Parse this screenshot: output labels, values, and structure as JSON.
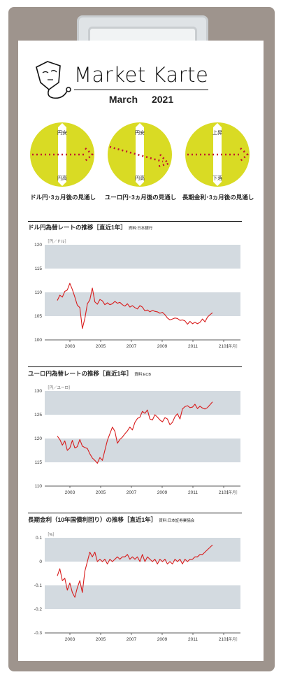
{
  "header": {
    "brand": "Market Karte",
    "month": "March 2021"
  },
  "colors": {
    "disc": "#d9db24",
    "arrow": "#c1192e",
    "band": "#d3dae0",
    "line": "#d81c1c"
  },
  "forecasts": [
    {
      "up_label": "円安",
      "down_label": "円高",
      "direction": "flat",
      "caption": "ドル円･3ヵ月後の見通し"
    },
    {
      "up_label": "円安",
      "down_label": "円高",
      "direction": "down",
      "caption": "ユーロ円･3ヵ月後の見通し"
    },
    {
      "up_label": "上昇",
      "down_label": "下落",
      "direction": "flat",
      "caption": "長期金利･3ヵ月後の見通し"
    }
  ],
  "charts": [
    {
      "title": "ドル円為替レートの推移［直近1年］",
      "source": "資料:日本銀行",
      "unit": "［円／ドル］"
    },
    {
      "title": "ユーロ円為替レートの推移［直近1年］",
      "source": "資料:ECB",
      "unit": "［円／ユーロ］"
    },
    {
      "title": "長期金利（10年国債利回り）の推移［直近1年］",
      "source": "資料:日本証券業協会",
      "unit": "［%］"
    }
  ],
  "chart_data": [
    {
      "type": "line",
      "ylim": [
        100,
        120
      ],
      "yticks": [
        100,
        105,
        110,
        115,
        120
      ],
      "ytick_labels": [
        "100",
        "105",
        "110",
        "115",
        "120"
      ],
      "xticks": [
        "2003",
        "2005",
        "2007",
        "2009",
        "2011",
        "2101"
      ],
      "x_unit_label": "［年月］",
      "series": [
        {
          "values": [
            108.3,
            109.4,
            109.0,
            110.2,
            110.5,
            111.9,
            110.6,
            109.0,
            107.3,
            106.8,
            102.4,
            104.5,
            107.6,
            108.4,
            110.9,
            108.0,
            107.5,
            108.5,
            108.2,
            107.4,
            107.8,
            107.4,
            107.6,
            108.1,
            107.7,
            107.9,
            107.4,
            107.1,
            107.6,
            106.9,
            107.2,
            106.8,
            106.5,
            107.2,
            106.9,
            106.1,
            106.3,
            105.9,
            106.2,
            106.0,
            105.9,
            105.6,
            105.8,
            105.3,
            104.6,
            104.2,
            104.4,
            104.6,
            104.5,
            104.1,
            104.2,
            104.0,
            103.3,
            103.9,
            103.4,
            103.7,
            103.4,
            103.7,
            104.4,
            103.8,
            104.8,
            105.3,
            105.7
          ]
        }
      ]
    },
    {
      "type": "line",
      "ylim": [
        110,
        130
      ],
      "yticks": [
        110,
        115,
        120,
        125,
        130
      ],
      "ytick_labels": [
        "110",
        "115",
        "120",
        "125",
        "130"
      ],
      "xticks": [
        "2003",
        "2005",
        "2007",
        "2009",
        "2011",
        "2101"
      ],
      "x_unit_label": "［年月］",
      "series": [
        {
          "values": [
            120.5,
            119.8,
            118.6,
            119.5,
            117.5,
            118.0,
            119.6,
            118.0,
            118.3,
            119.8,
            118.4,
            118.1,
            117.9,
            116.8,
            115.9,
            115.4,
            114.8,
            116.0,
            115.4,
            117.5,
            119.6,
            121.0,
            122.4,
            121.5,
            119.0,
            119.8,
            120.3,
            121.0,
            121.6,
            122.4,
            121.8,
            123.4,
            124.2,
            124.5,
            125.7,
            125.3,
            126.0,
            124.1,
            123.9,
            125.0,
            124.5,
            123.9,
            123.5,
            124.4,
            124.1,
            122.9,
            123.4,
            124.6,
            125.2,
            124.1,
            126.2,
            126.7,
            126.9,
            126.5,
            126.6,
            127.2,
            126.3,
            126.8,
            126.4,
            126.2,
            126.5,
            127.1,
            127.7
          ]
        }
      ]
    },
    {
      "type": "line",
      "ylim": [
        -0.3,
        0.1
      ],
      "yticks": [
        -0.3,
        -0.2,
        -0.1,
        0,
        0.1
      ],
      "ytick_labels": [
        "-0.3",
        "-0.2",
        "-0.1",
        "0",
        "0.1"
      ],
      "xticks": [
        "2003",
        "2005",
        "2007",
        "2009",
        "2011",
        "2101"
      ],
      "x_unit_label": "［年月］",
      "series": [
        {
          "values": [
            -0.06,
            -0.03,
            -0.08,
            -0.07,
            -0.12,
            -0.09,
            -0.13,
            -0.15,
            -0.11,
            -0.08,
            -0.13,
            -0.04,
            0.0,
            0.04,
            0.02,
            0.04,
            0.0,
            0.01,
            0.0,
            0.01,
            -0.01,
            0.01,
            0.0,
            0.01,
            0.02,
            0.01,
            0.02,
            0.02,
            0.03,
            0.01,
            0.02,
            0.01,
            0.02,
            0.0,
            0.03,
            0.0,
            0.02,
            0.01,
            0.0,
            0.01,
            -0.01,
            0.01,
            0.0,
            0.01,
            -0.01,
            0.0,
            -0.01,
            0.01,
            0.0,
            0.01,
            -0.01,
            0.01,
            0.0,
            0.01,
            0.01,
            0.02,
            0.02,
            0.03,
            0.03,
            0.04,
            0.05,
            0.06,
            0.07
          ]
        }
      ]
    }
  ]
}
